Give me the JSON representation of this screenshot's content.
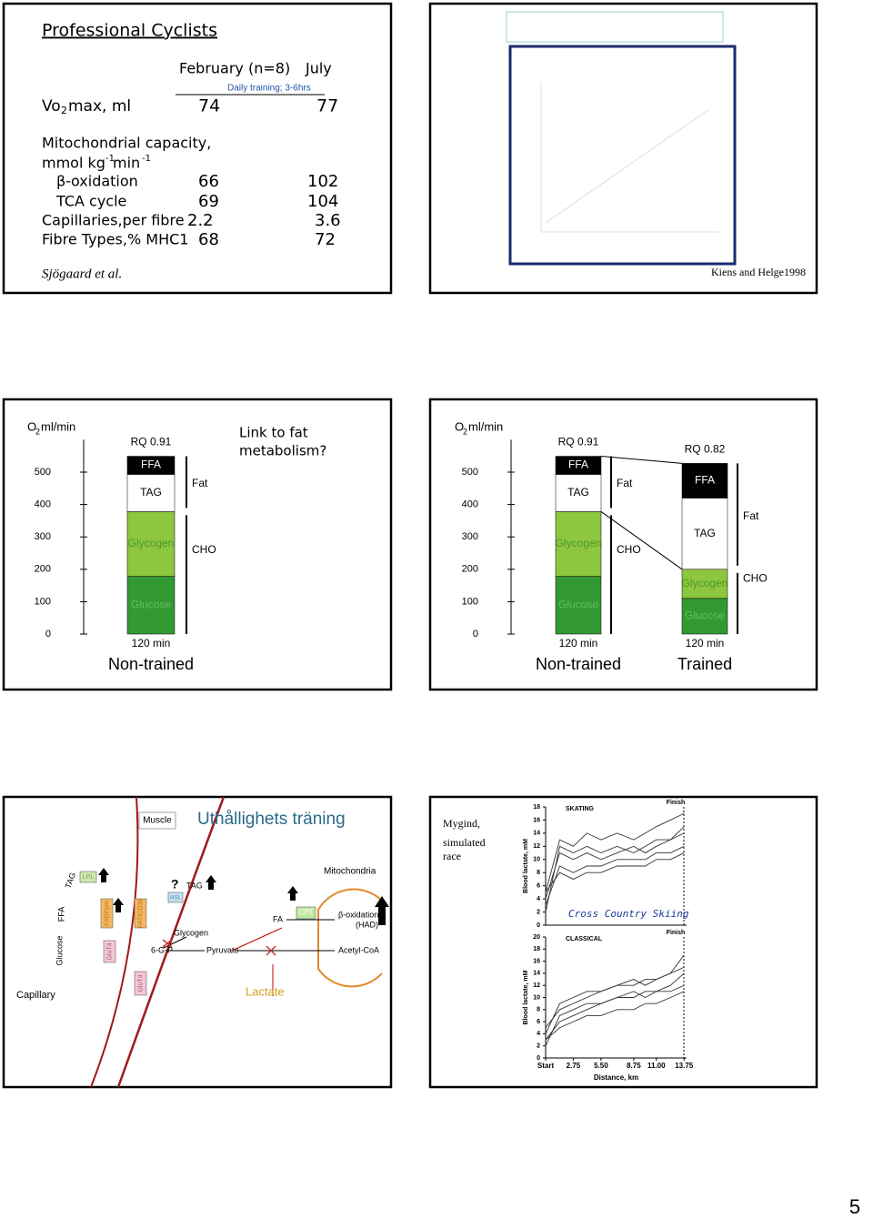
{
  "slide1": {
    "title": "Professional Cyclists",
    "col_feb": "February (n=8)",
    "col_jul": "July",
    "note": "Daily training; 3-6hrs",
    "vo2": {
      "label": [
        "Vo",
        "2",
        "max, ml"
      ],
      "feb": "74",
      "jul": "77"
    },
    "mito_label": [
      "Mitochondrial capacity,",
      "mmol kg",
      "-1",
      " min",
      "-1"
    ],
    "rows": [
      [
        "β-oxidation",
        "66",
        "102"
      ],
      [
        "TCA cycle",
        "69",
        "104"
      ],
      [
        "Capillaries,per fibre",
        "2.2",
        "3.6"
      ],
      [
        "Fibre Types,% MHC1",
        "68",
        "72"
      ]
    ],
    "source": "Sjögaard et al."
  },
  "slide2": {
    "source": "Kiens and Helge1998"
  },
  "slide3": {
    "type": "stacked-bar",
    "ylabel": [
      "O",
      "2",
      " ml/min"
    ],
    "ylim": [
      0,
      600
    ],
    "yticks": [
      0,
      100,
      200,
      300,
      400,
      500
    ],
    "annotation": [
      "Link to  fat",
      "metabolism?"
    ],
    "bars": [
      {
        "rq": "RQ 0.91",
        "xlabel": "120 min",
        "group": "Non-trained",
        "fat": "Fat",
        "cho": "CHO",
        "segments": [
          {
            "name": "Glucose",
            "value": 178,
            "color": "#339933",
            "text_color": "#5fbf5f"
          },
          {
            "name": "Glycogen",
            "value": 200,
            "color": "#8dc63f",
            "text_color": "#4d9a2a"
          },
          {
            "name": "TAG",
            "value": 115,
            "color": "#ffffff",
            "text_color": "#000000"
          },
          {
            "name": "FFA",
            "value": 56,
            "color": "#000000",
            "text_color": "#ffffff"
          }
        ]
      }
    ]
  },
  "slide4": {
    "type": "stacked-bar",
    "ylabel": [
      "O",
      "2",
      " ml/min"
    ],
    "ylim": [
      0,
      600
    ],
    "yticks": [
      0,
      100,
      200,
      300,
      400,
      500
    ],
    "bars": [
      {
        "rq": "RQ 0.91",
        "xlabel": "120 min",
        "group": "Non-trained",
        "fat": "Fat",
        "cho": "CHO",
        "segments": [
          {
            "name": "Glucose",
            "value": 178,
            "color": "#339933",
            "text_color": "#5fbf5f"
          },
          {
            "name": "Glycogen",
            "value": 200,
            "color": "#8dc63f",
            "text_color": "#4d9a2a"
          },
          {
            "name": "TAG",
            "value": 115,
            "color": "#ffffff",
            "text_color": "#000000"
          },
          {
            "name": "FFA",
            "value": 56,
            "color": "#000000",
            "text_color": "#ffffff"
          }
        ]
      },
      {
        "rq": "RQ 0.82",
        "xlabel": "120 min",
        "group": "Trained",
        "fat": "Fat",
        "cho": "CHO",
        "segments": [
          {
            "name": "Glucose",
            "value": 110,
            "color": "#339933",
            "text_color": "#5fbf5f"
          },
          {
            "name": "Glycogen",
            "value": 90,
            "color": "#8dc63f",
            "text_color": "#4d9a2a"
          },
          {
            "name": "TAG",
            "value": 220,
            "color": "#ffffff",
            "text_color": "#000000"
          },
          {
            "name": "FFA",
            "value": 107,
            "color": "#000000",
            "text_color": "#ffffff"
          }
        ]
      }
    ]
  },
  "slide5": {
    "muscle": "Muscle",
    "title": "Uthållighets träning",
    "mitochondria": "Mitochondria",
    "capillary": "Capillary",
    "glucose": "Glucose",
    "ffa": "FFA",
    "tag_blood": "TAG",
    "lpl": "LPL",
    "fabp": "FABPpm",
    "fat_cd36": "FAT/CD36",
    "glut4_a": "GluT4",
    "glut4_b": "GluT4",
    "question": "?",
    "tag_muscle": "TAG",
    "hsl": "HSL",
    "glycogen": "Glycogen",
    "g6p": "6-G-P",
    "pyruvate": "Pyruvate",
    "fa": "FA",
    "cpt": "CPT",
    "beta_ox": "β-oxidation",
    "had": "(HAD)",
    "acetyl": "Acetyl-CoA",
    "lactate": "Lactate"
  },
  "slide6": {
    "note": [
      "Mygind,",
      "simulated",
      "race"
    ],
    "caption": "Cross Country Skiing",
    "charts": [
      {
        "type": "line",
        "title": "SKATING",
        "annotation": "Finish",
        "ylabel": "Blood lactate, mM",
        "x": [
          0,
          1.4,
          2.75,
          4.1,
          5.5,
          7.1,
          8.75,
          9.9,
          11,
          12.4,
          13.75
        ],
        "xlim": [
          0,
          14
        ],
        "ylim": [
          0,
          18
        ],
        "yticks": [
          0,
          2,
          4,
          6,
          8,
          10,
          12,
          14,
          16,
          18
        ],
        "color": "#333333",
        "series": [
          {
            "values": [
              5,
              13,
              12,
              14,
              13,
              14,
              13,
              14,
              15,
              16,
              17
            ]
          },
          {
            "values": [
              4,
              11,
              10,
              11,
              10,
              11,
              12,
              11,
              12,
              13,
              15
            ]
          },
          {
            "values": [
              3,
              9,
              8,
              9,
              9,
              10,
              10,
              10,
              11,
              11,
              12
            ]
          },
          {
            "values": [
              2,
              12,
              11,
              12,
              11,
              12,
              11,
              12,
              13,
              13,
              14
            ]
          },
          {
            "values": [
              5,
              8,
              7,
              8,
              8,
              9,
              9,
              9,
              10,
              10,
              11
            ]
          }
        ]
      },
      {
        "type": "line",
        "title": "CLASSICAL",
        "annotation": "Finish",
        "ylabel": "Blood lactate, mM",
        "xlabel": "Distance, km",
        "x": [
          0,
          1.4,
          2.75,
          4.1,
          5.5,
          7.1,
          8.75,
          9.9,
          11,
          12.4,
          13.75
        ],
        "xlim": [
          0,
          14
        ],
        "ylim": [
          0,
          20
        ],
        "yticks": [
          0,
          2,
          4,
          6,
          8,
          10,
          12,
          14,
          16,
          18,
          20
        ],
        "xticks": [
          {
            "value": 0,
            "label": "Start"
          },
          2.75,
          {
            "value": 5.5,
            "label": "5.50"
          },
          8.75,
          {
            "value": 11,
            "label": "11.00"
          },
          13.75
        ],
        "color": "#333333",
        "series": [
          {
            "values": [
              5,
              8,
              9,
              10,
              11,
              12,
              12,
              13,
              13,
              14,
              17
            ]
          },
          {
            "values": [
              3,
              6,
              7,
              8,
              9,
              10,
              10,
              11,
              11,
              12,
              14
            ]
          },
          {
            "values": [
              2,
              7,
              8,
              9,
              9,
              10,
              11,
              10,
              11,
              11,
              12
            ]
          },
          {
            "values": [
              4,
              9,
              10,
              11,
              11,
              12,
              13,
              12,
              13,
              14,
              15
            ]
          },
          {
            "values": [
              3,
              5,
              6,
              7,
              7,
              8,
              8,
              9,
              9,
              10,
              11
            ]
          }
        ]
      }
    ]
  },
  "page_number": "5"
}
